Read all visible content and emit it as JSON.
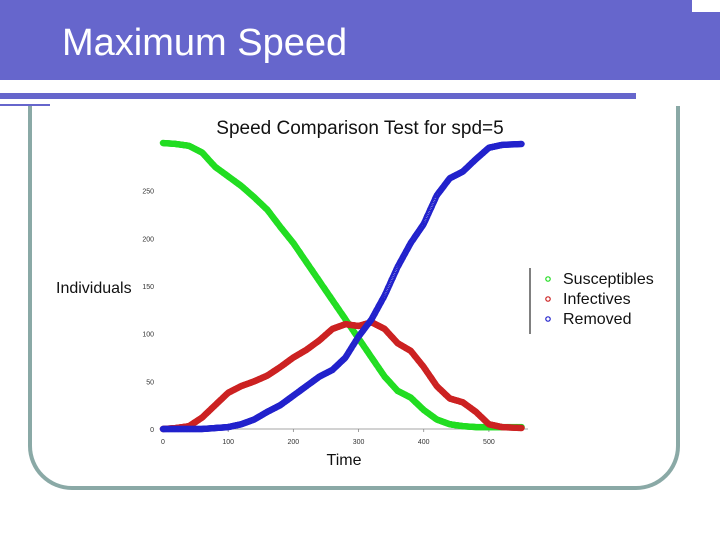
{
  "slide": {
    "title": "Maximum Speed"
  },
  "colors": {
    "title_bar": "#6666cc",
    "frame": "#8aa9a6"
  },
  "chart_data": {
    "type": "scatter",
    "title": "Speed Comparison Test for spd=5",
    "xlabel": "Time",
    "ylabel": "Individuals",
    "xlim": [
      0,
      560
    ],
    "ylim": [
      0,
      300
    ],
    "xticks": [
      "0",
      "100",
      "200",
      "300",
      "400",
      "500"
    ],
    "yticks": [
      "0",
      "50",
      "100",
      "150",
      "200",
      "250"
    ],
    "grid": false,
    "legend": "right",
    "series": [
      {
        "name": "Susceptibles",
        "color": "#22dd22",
        "x": [
          0,
          20,
          40,
          60,
          80,
          100,
          120,
          140,
          160,
          180,
          200,
          220,
          240,
          260,
          280,
          300,
          320,
          340,
          360,
          380,
          400,
          420,
          440,
          460,
          480,
          500,
          520,
          550
        ],
        "y": [
          300,
          299,
          297,
          290,
          275,
          265,
          255,
          243,
          230,
          212,
          195,
          175,
          155,
          135,
          115,
          95,
          75,
          55,
          40,
          33,
          20,
          10,
          5,
          3,
          2,
          2,
          2,
          2
        ]
      },
      {
        "name": "Infectives",
        "color": "#cc2222",
        "x": [
          0,
          20,
          40,
          60,
          80,
          100,
          120,
          140,
          160,
          180,
          200,
          220,
          240,
          260,
          280,
          300,
          320,
          340,
          360,
          380,
          400,
          420,
          440,
          460,
          480,
          500,
          520,
          550
        ],
        "y": [
          0,
          1,
          3,
          12,
          25,
          38,
          45,
          50,
          56,
          65,
          75,
          83,
          93,
          105,
          110,
          108,
          112,
          105,
          90,
          82,
          65,
          45,
          32,
          28,
          18,
          5,
          2,
          1
        ]
      },
      {
        "name": "Removed",
        "color": "#2222cc",
        "x": [
          0,
          20,
          40,
          60,
          80,
          100,
          120,
          140,
          160,
          180,
          200,
          220,
          240,
          260,
          280,
          300,
          320,
          340,
          360,
          380,
          400,
          420,
          440,
          460,
          480,
          500,
          520,
          550
        ],
        "y": [
          0,
          0,
          0,
          0,
          1,
          2,
          5,
          10,
          18,
          25,
          35,
          45,
          55,
          62,
          75,
          97,
          115,
          140,
          170,
          195,
          215,
          245,
          263,
          270,
          283,
          295,
          298,
          299
        ]
      }
    ]
  }
}
